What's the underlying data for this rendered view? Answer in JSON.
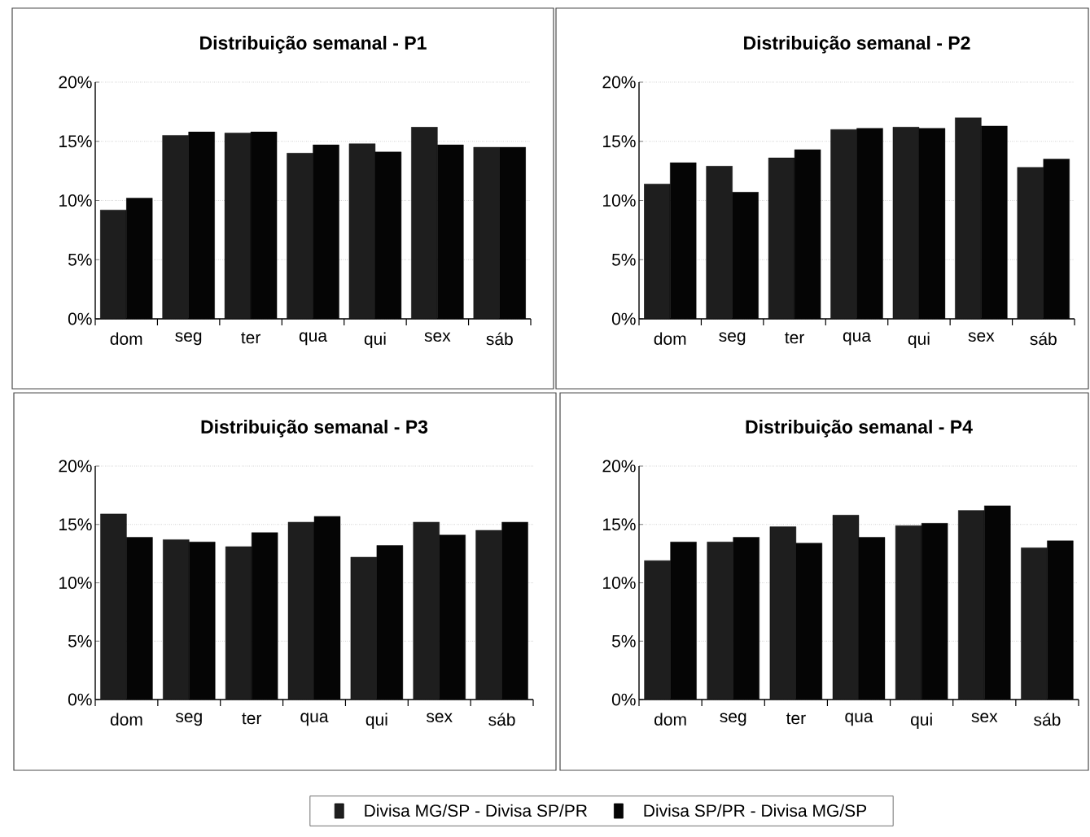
{
  "chart_data": [
    {
      "type": "bar",
      "title": "Distribuição semanal - P1",
      "categories": [
        "dom",
        "seg",
        "ter",
        "qua",
        "qui",
        "sex",
        "sáb"
      ],
      "series": [
        {
          "color": "#1e1e1e",
          "values": [
            9.2,
            15.5,
            15.7,
            14.0,
            14.8,
            16.2,
            14.5
          ]
        },
        {
          "color": "#050505",
          "values": [
            10.2,
            15.8,
            15.8,
            14.7,
            14.1,
            14.7,
            14.5
          ]
        }
      ],
      "ylim": [
        0,
        20
      ],
      "yticks": [
        {
          "value": 0,
          "label": "0%"
        },
        {
          "value": 5,
          "label": "5%"
        },
        {
          "value": 10,
          "label": "10%"
        },
        {
          "value": 15,
          "label": "15%"
        },
        {
          "value": 20,
          "label": "20%"
        }
      ],
      "grid": "y"
    },
    {
      "type": "bar",
      "title": "Distribuição semanal - P2",
      "categories": [
        "dom",
        "seg",
        "ter",
        "qua",
        "qui",
        "sex",
        "sáb"
      ],
      "series": [
        {
          "color": "#1e1e1e",
          "values": [
            11.4,
            12.9,
            13.6,
            16.0,
            16.2,
            17.0,
            12.8
          ]
        },
        {
          "color": "#050505",
          "values": [
            13.2,
            10.7,
            14.3,
            16.1,
            16.1,
            16.3,
            13.5
          ]
        }
      ],
      "ylim": [
        0,
        20
      ],
      "yticks": [
        {
          "value": 0,
          "label": "0%"
        },
        {
          "value": 5,
          "label": "5%"
        },
        {
          "value": 10,
          "label": "10%"
        },
        {
          "value": 15,
          "label": "15%"
        },
        {
          "value": 20,
          "label": "20%"
        }
      ],
      "grid": "y"
    },
    {
      "type": "bar",
      "title": "Distribuição semanal - P3",
      "categories": [
        "dom",
        "seg",
        "ter",
        "qua",
        "qui",
        "sex",
        "sáb"
      ],
      "series": [
        {
          "color": "#1e1e1e",
          "values": [
            15.9,
            13.7,
            13.1,
            15.2,
            12.2,
            15.2,
            14.5
          ]
        },
        {
          "color": "#050505",
          "values": [
            13.9,
            13.5,
            14.3,
            15.7,
            13.2,
            14.1,
            15.2
          ]
        }
      ],
      "ylim": [
        0,
        20
      ],
      "yticks": [
        {
          "value": 0,
          "label": "0%"
        },
        {
          "value": 5,
          "label": "5%"
        },
        {
          "value": 10,
          "label": "10%"
        },
        {
          "value": 15,
          "label": "15%"
        },
        {
          "value": 20,
          "label": "20%"
        }
      ],
      "grid": "y"
    },
    {
      "type": "bar",
      "title": "Distribuição semanal - P4",
      "categories": [
        "dom",
        "seg",
        "ter",
        "qua",
        "qui",
        "sex",
        "sáb"
      ],
      "series": [
        {
          "name": "Divisa MG/SP - Divisa SP/PR",
          "color": "#1e1e1e",
          "values": [
            11.9,
            13.5,
            14.8,
            15.8,
            14.9,
            16.2,
            13.0
          ]
        },
        {
          "name": "Divisa SP/PR - Divisa MG/SP",
          "color": "#050505",
          "values": [
            13.5,
            13.9,
            13.4,
            13.9,
            15.1,
            16.6,
            13.6
          ]
        }
      ],
      "ylim": [
        0,
        20
      ],
      "yticks": [
        {
          "value": 0,
          "label": "0%"
        },
        {
          "value": 5,
          "label": "5%"
        },
        {
          "value": 10,
          "label": "10%"
        },
        {
          "value": 15,
          "label": "15%"
        },
        {
          "value": 20,
          "label": "20%"
        }
      ],
      "grid": "y",
      "legend": "bottom"
    }
  ]
}
